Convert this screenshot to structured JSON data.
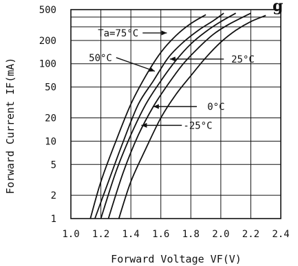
{
  "chart_data": {
    "type": "line",
    "title_fragment": "g",
    "xlabel": "Forward Voltage VF(V)",
    "ylabel": "Forward Current IF(mA)",
    "xlim": [
      1.0,
      2.4
    ],
    "ylim": [
      1,
      500
    ],
    "yscale": "log",
    "grid": true,
    "x_ticks": [
      1.0,
      1.2,
      1.4,
      1.6,
      1.8,
      2.0,
      2.2,
      2.4
    ],
    "x_tick_labels": [
      "1.0",
      "1.2",
      "1.4",
      "1.6",
      "1.8",
      "2.0",
      "2.2",
      "2.4"
    ],
    "y_ticks": [
      1,
      2,
      5,
      10,
      20,
      50,
      100,
      200,
      500
    ],
    "y_tick_labels": [
      "1",
      "2",
      "5",
      "10",
      "20",
      "50",
      "100",
      "200",
      "500"
    ],
    "y_minor_grid": [
      300,
      400
    ],
    "series": [
      {
        "name": "Ta=75°C",
        "x": [
          1.13,
          1.2,
          1.3,
          1.4,
          1.5,
          1.6,
          1.7,
          1.8,
          1.9
        ],
        "y": [
          1,
          3,
          10,
          30,
          70,
          140,
          230,
          330,
          430
        ]
      },
      {
        "name": "50°C",
        "x": [
          1.16,
          1.25,
          1.35,
          1.45,
          1.55,
          1.65,
          1.75,
          1.85,
          1.95,
          2.02
        ],
        "y": [
          1,
          3,
          10,
          30,
          60,
          120,
          190,
          270,
          360,
          450
        ]
      },
      {
        "name": "25°C",
        "x": [
          1.2,
          1.3,
          1.4,
          1.5,
          1.6,
          1.7,
          1.8,
          1.9,
          2.0,
          2.1
        ],
        "y": [
          1,
          4,
          12,
          30,
          60,
          110,
          180,
          260,
          350,
          450
        ]
      },
      {
        "name": "0°C",
        "x": [
          1.25,
          1.35,
          1.45,
          1.55,
          1.65,
          1.75,
          1.85,
          1.95,
          2.05,
          2.2
        ],
        "y": [
          1,
          4,
          12,
          28,
          55,
          100,
          160,
          240,
          320,
          450
        ]
      },
      {
        "name": "-25°C",
        "x": [
          1.32,
          1.4,
          1.5,
          1.6,
          1.7,
          1.8,
          1.9,
          2.0,
          2.1,
          2.2,
          2.3
        ],
        "y": [
          1,
          3,
          8,
          20,
          40,
          70,
          120,
          190,
          270,
          350,
          420
        ]
      }
    ],
    "annotations": [
      {
        "text": "Ta=75°C",
        "x": 1.18,
        "y": 250,
        "arrow_to": [
          1.64,
          250
        ]
      },
      {
        "text": "50°C",
        "x": 1.12,
        "y": 120,
        "arrow_to": [
          1.56,
          80
        ]
      },
      {
        "text": "25°C",
        "x": 2.07,
        "y": 115,
        "arrow_from": [
          2.02,
          115
        ],
        "arrow_to": [
          1.66,
          115
        ]
      },
      {
        "text": "0°C",
        "x": 1.91,
        "y": 28,
        "arrow_from": [
          1.84,
          28
        ],
        "arrow_to": [
          1.55,
          28
        ]
      },
      {
        "text": "-25°C",
        "x": 1.75,
        "y": 16,
        "arrow_from": [
          1.74,
          16
        ],
        "arrow_to": [
          1.47,
          16
        ]
      }
    ]
  }
}
